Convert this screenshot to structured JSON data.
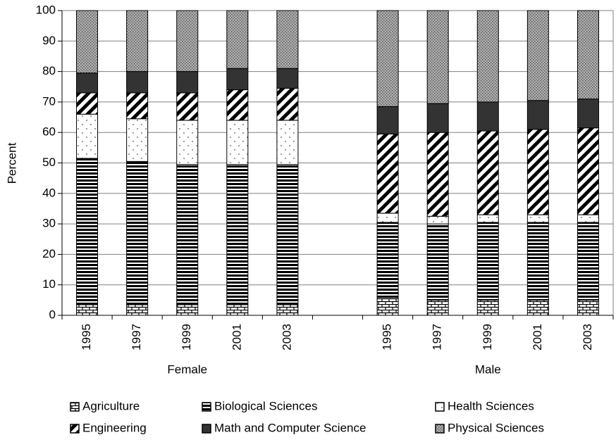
{
  "chart_data": {
    "type": "stacked_bar",
    "y_label": "Percent",
    "categories": [
      "1995",
      "1997",
      "1999",
      "2001",
      "2003",
      null,
      "1995",
      "1997",
      "1999",
      "2001",
      "2003"
    ],
    "groups": [
      {
        "label": "Female",
        "span": [
          0,
          4
        ]
      },
      {
        "label": "Male",
        "span": [
          6,
          10
        ]
      }
    ],
    "series": [
      {
        "name": "Agriculture",
        "color": "#ffffff",
        "pattern": "brick",
        "values": [
          3.5,
          3.5,
          3.5,
          3.5,
          3.5,
          null,
          5.5,
          5,
          5,
          5,
          5
        ]
      },
      {
        "name": "Biological Sciences",
        "color": "#000000",
        "pattern": "hstripes",
        "values": [
          48,
          47,
          46,
          46,
          46,
          null,
          25,
          25,
          25.5,
          25.5,
          25.5
        ]
      },
      {
        "name": "Health Sciences",
        "color": "#ffffff",
        "pattern": "dots",
        "values": [
          14.5,
          14,
          14.5,
          14.5,
          14.5,
          null,
          3,
          2.5,
          2.5,
          2.5,
          2.5
        ]
      },
      {
        "name": "Engineering",
        "color": "#000000",
        "pattern": "diagonal",
        "values": [
          7,
          8.5,
          9,
          10,
          10.5,
          null,
          26,
          27.5,
          27.5,
          28,
          28.5
        ]
      },
      {
        "name": "Math and Computer Science",
        "color": "#333333",
        "pattern": "solid",
        "values": [
          6.5,
          7,
          7,
          7,
          6.5,
          null,
          9,
          9.5,
          9.5,
          9.5,
          9.5
        ]
      },
      {
        "name": "Physical Sciences",
        "color": "#9a9a9a",
        "pattern": "speckle",
        "values": [
          20.5,
          20,
          20,
          19,
          19,
          null,
          31.5,
          30.5,
          30,
          29.5,
          29
        ]
      }
    ],
    "ylim": [
      0,
      100
    ],
    "yticks": [
      0,
      10,
      20,
      30,
      40,
      50,
      60,
      70,
      80,
      90,
      100
    ],
    "grid": true,
    "legend": "bottom"
  }
}
